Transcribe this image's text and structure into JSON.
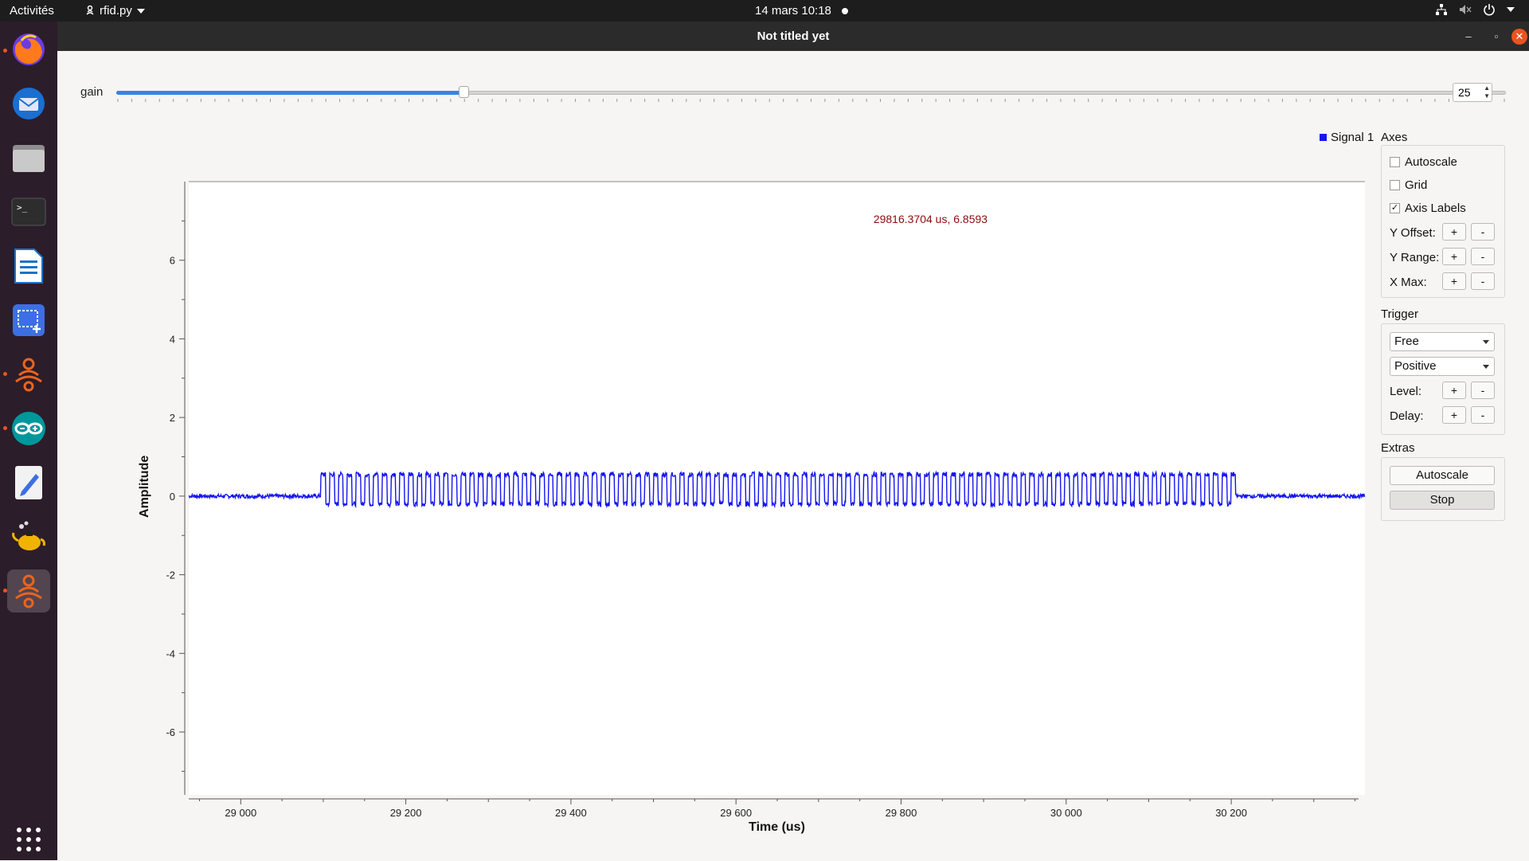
{
  "topbar": {
    "activities": "Activités",
    "app_name": "rfid.py",
    "clock": "14 mars  10:18"
  },
  "dock": {
    "icons": [
      "firefox-icon",
      "thunderbird-icon",
      "files-icon",
      "terminal-icon",
      "writer-icon",
      "screenshot-icon",
      "gnuradio-icon",
      "arduino-icon",
      "text-editor-icon",
      "teapot-icon",
      "gnuradio-active-icon"
    ],
    "apps_grid": "show-apps-icon"
  },
  "window": {
    "title": "Not titled yet",
    "minimize": "–",
    "maximize": "▫",
    "close": "✕"
  },
  "gain": {
    "label": "gain",
    "value": "25",
    "fraction": 0.25
  },
  "axes_panel": {
    "title": "Axes",
    "autoscale_label": "Autoscale",
    "autoscale_checked": false,
    "grid_label": "Grid",
    "grid_checked": false,
    "axis_labels_label": "Axis Labels",
    "axis_labels_checked": true,
    "y_offset_label": "Y Offset:",
    "y_range_label": "Y Range:",
    "x_max_label": "X Max:",
    "plus": "+",
    "minus": "-"
  },
  "trigger_panel": {
    "title": "Trigger",
    "mode": "Free",
    "slope": "Positive",
    "level_label": "Level:",
    "delay_label": "Delay:"
  },
  "extras_panel": {
    "title": "Extras",
    "autoscale_button": "Autoscale",
    "stop_button": "Stop"
  },
  "chart_data": {
    "type": "line",
    "xlabel": "Time (us)",
    "ylabel": "Amplitude",
    "xlim": [
      28937,
      30362
    ],
    "ylim": [
      -7.6,
      8
    ],
    "x_ticks": [
      29000,
      29200,
      29400,
      29600,
      29800,
      30000,
      30200
    ],
    "x_tick_labels": [
      "29 000",
      "29 200",
      "29 400",
      "29 600",
      "29 800",
      "30 000",
      "30 200"
    ],
    "y_ticks": [
      6,
      4,
      2,
      0,
      -2,
      -4,
      -6
    ],
    "y_tick_labels": [
      "6",
      "4",
      "2",
      "0",
      "-2",
      "-4",
      "-6"
    ],
    "grid": false,
    "annotation": "29816.3704 us, 6.8593",
    "series": [
      {
        "name": "Signal 1",
        "color": "#1515f0",
        "baseline": 0.0,
        "burst_start": 29097,
        "burst_end": 30205,
        "burst_high": 0.55,
        "burst_low": -0.2,
        "pulse_period": 10.6
      }
    ]
  }
}
